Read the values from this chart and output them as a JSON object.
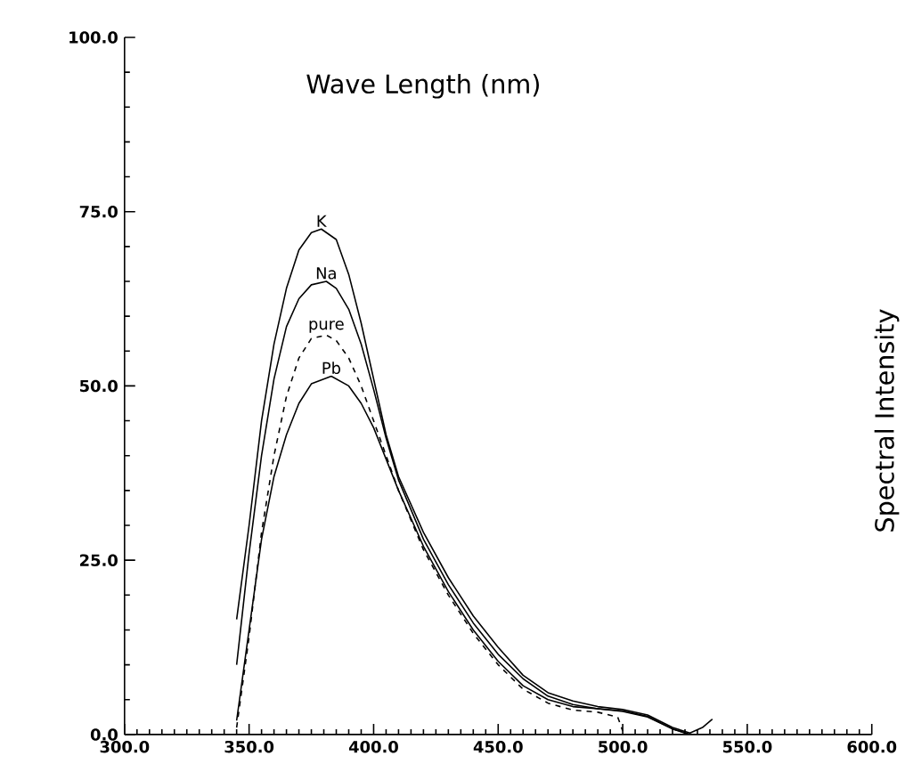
{
  "chart_data": {
    "type": "line",
    "xlabel": "Wave Length (nm)",
    "ylabel": "Spectral Intensity",
    "xlim": [
      300,
      600
    ],
    "ylim": [
      0,
      100
    ],
    "xticks": [
      {
        "value": 300,
        "label": "300.0"
      },
      {
        "value": 350,
        "label": "350.0"
      },
      {
        "value": 400,
        "label": "400.0"
      },
      {
        "value": 450,
        "label": "450.0"
      },
      {
        "value": 500,
        "label": "500.0"
      },
      {
        "value": 550,
        "label": "550.0"
      },
      {
        "value": 600,
        "label": "600.0"
      }
    ],
    "yticks": [
      {
        "value": 0,
        "label": "0.0"
      },
      {
        "value": 25,
        "label": "25.0"
      },
      {
        "value": 50,
        "label": "50.0"
      },
      {
        "value": 75,
        "label": "75.0"
      },
      {
        "value": 100,
        "label": "100.0"
      }
    ],
    "grid": false,
    "legend": false,
    "marker": "none",
    "series": [
      {
        "name": "K",
        "color": "#000000",
        "line_style": "solid",
        "x": [
          345,
          350,
          355,
          360,
          365,
          370,
          375,
          379,
          385,
          390,
          395,
          400,
          405,
          410,
          420,
          430,
          440,
          450,
          460,
          470,
          480,
          490,
          500,
          510,
          520,
          527,
          532,
          536
        ],
        "values": [
          16.5,
          30,
          45,
          56,
          64,
          69.5,
          72,
          72.5,
          71,
          66,
          59,
          51,
          43,
          37,
          29,
          22.5,
          17,
          12.5,
          8.5,
          6,
          4.8,
          4,
          3.6,
          2.8,
          1,
          0.2,
          1,
          2.2
        ]
      },
      {
        "name": "Na",
        "color": "#000000",
        "line_style": "solid",
        "x": [
          345,
          350,
          355,
          360,
          365,
          370,
          375,
          381,
          385,
          390,
          395,
          400,
          405,
          410,
          420,
          430,
          440,
          450,
          460,
          470,
          480,
          490,
          500,
          510,
          520,
          527
        ],
        "values": [
          10,
          26,
          40,
          51,
          58.5,
          62.5,
          64.5,
          65,
          64,
          61,
          56,
          49.5,
          42.5,
          36.5,
          28,
          21.5,
          16,
          11.5,
          8,
          5.5,
          4.3,
          3.7,
          3.3,
          2.5,
          0.8,
          0
        ]
      },
      {
        "name": "pure",
        "color": "#000000",
        "line_style": "dashed",
        "x": [
          345,
          350,
          355,
          360,
          365,
          370,
          375,
          381,
          385,
          390,
          395,
          400,
          405,
          410,
          420,
          430,
          440,
          450,
          460,
          470,
          480,
          490,
          498,
          500
        ],
        "values": [
          1,
          14,
          29,
          40,
          48.5,
          54,
          56.8,
          57.3,
          56.5,
          54,
          50,
          45,
          40,
          35,
          26.5,
          20,
          14.5,
          10,
          6.5,
          4.5,
          3.5,
          3.2,
          2.5,
          0.5
        ]
      },
      {
        "name": "Pb",
        "color": "#000000",
        "line_style": "solid",
        "x": [
          345,
          350,
          355,
          360,
          365,
          370,
          375,
          383,
          390,
          395,
          400,
          405,
          410,
          420,
          430,
          440,
          450,
          460,
          470,
          480,
          490,
          500,
          510,
          520,
          527
        ],
        "values": [
          2,
          15,
          28,
          37,
          43,
          47.5,
          50.3,
          51.4,
          50,
          47.5,
          44,
          39.5,
          35,
          27,
          20.5,
          15,
          10.5,
          7,
          5,
          4,
          3.7,
          3.4,
          2.6,
          0.8,
          0
        ]
      }
    ]
  }
}
